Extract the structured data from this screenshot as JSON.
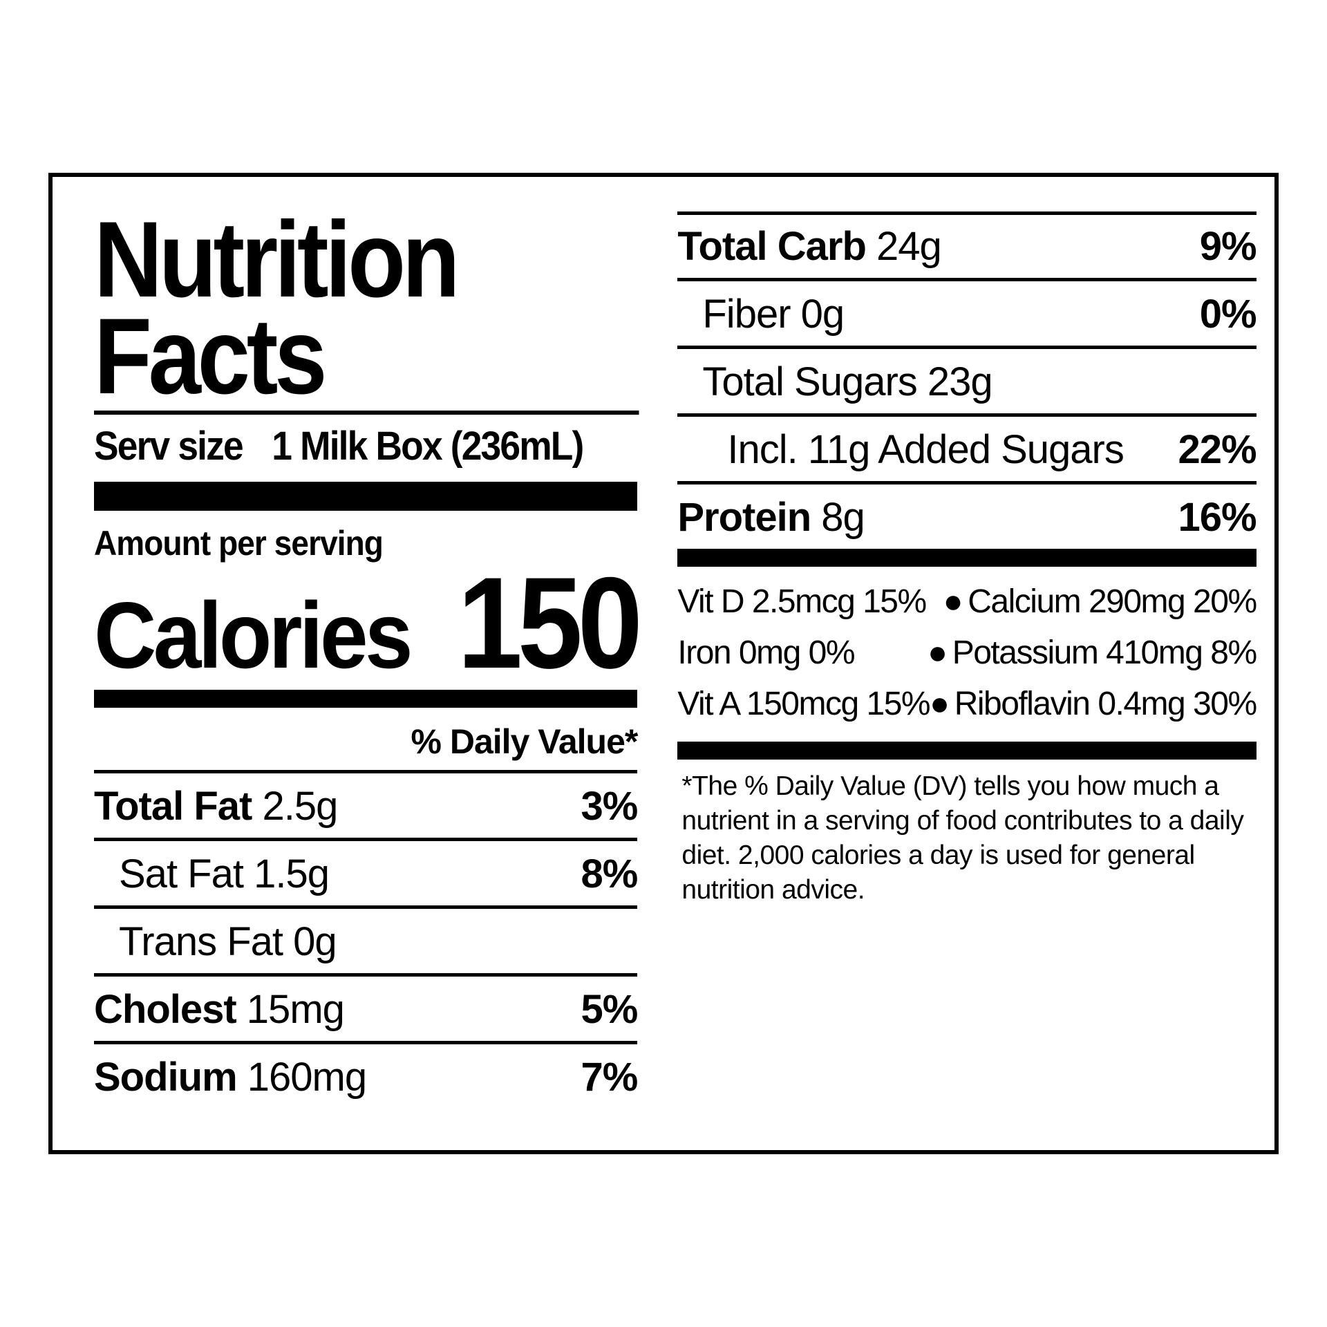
{
  "left": {
    "title": "Nutrition Facts",
    "serv_label": "Serv size",
    "serv_value": "1 Milk Box (236mL)",
    "amount_label": "Amount per serving",
    "calories_label": "Calories",
    "calories_value": "150",
    "dv_header": "% Daily Value*",
    "rows": [
      {
        "bold": "Total Fat",
        "rest": " 2.5g",
        "pct": "3%",
        "indent": 0
      },
      {
        "bold": "",
        "rest": "Sat Fat 1.5g",
        "pct": "8%",
        "indent": 1
      },
      {
        "bold": "",
        "rest": "Trans Fat 0g",
        "pct": "",
        "indent": 1
      },
      {
        "bold": "Cholest",
        "rest": " 15mg",
        "pct": "5%",
        "indent": 0
      },
      {
        "bold": "Sodium",
        "rest": " 160mg",
        "pct": "7%",
        "indent": 0,
        "no_border": true
      }
    ]
  },
  "right": {
    "rows": [
      {
        "bold": "Total Carb",
        "rest": " 24g",
        "pct": "9%",
        "indent": 0,
        "top_bar": true
      },
      {
        "bold": "",
        "rest": "Fiber 0g",
        "pct": "0%",
        "indent": 1
      },
      {
        "bold": "",
        "rest": "Total Sugars 23g",
        "pct": "",
        "indent": 1
      },
      {
        "bold": "",
        "rest": "Incl. 11g Added Sugars",
        "pct": "22%",
        "indent": 2
      },
      {
        "bold": "Protein",
        "rest": " 8g",
        "pct": "16%",
        "indent": 0,
        "no_border": true
      }
    ],
    "vitamins": [
      {
        "left": "Vit D 2.5mcg 15%",
        "right": "Calcium 290mg 20%"
      },
      {
        "left": "Iron 0mg 0%",
        "right": "Potassium 410mg 8%"
      },
      {
        "left": "Vit A 150mcg 15%",
        "right": "Riboflavin 0.4mg 30%"
      }
    ],
    "footnote": "*The % Daily Value (DV) tells you how much a nutrient in a serving of food contributes to a daily diet. 2,000 calories a day is used for general nutrition advice."
  }
}
